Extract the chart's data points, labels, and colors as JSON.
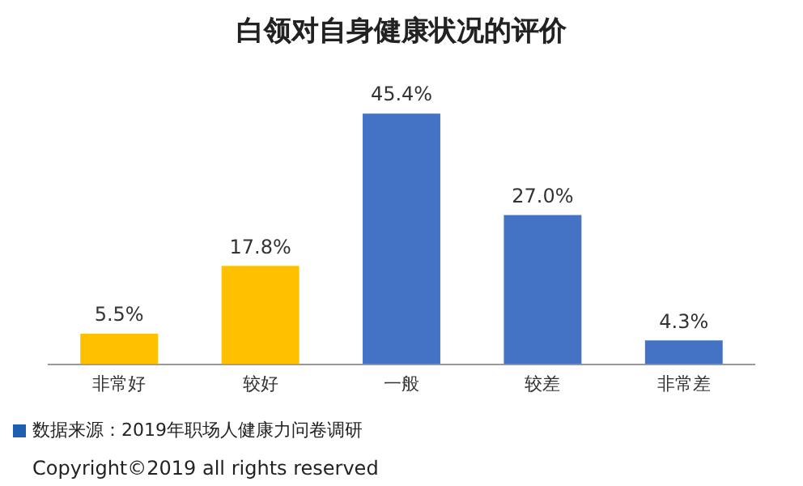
{
  "chart_data": {
    "type": "bar",
    "title": "白领对自身健康状况的评价",
    "categories": [
      "非常好",
      "较好",
      "一般",
      "较差",
      "非常差"
    ],
    "values": [
      5.5,
      17.8,
      45.4,
      27.0,
      4.3
    ],
    "colors": [
      "#ffc000",
      "#ffc000",
      "#4472c4",
      "#4472c4",
      "#4472c4"
    ],
    "value_labels": [
      "5.5%",
      "17.8%",
      "45.4%",
      "27.0%",
      "4.3%"
    ],
    "annotations": [
      "数据来源：2019年职场人健康力问卷调研",
      "Copyright©2019 all rights reserved"
    ],
    "grid": false,
    "legend": false
  }
}
